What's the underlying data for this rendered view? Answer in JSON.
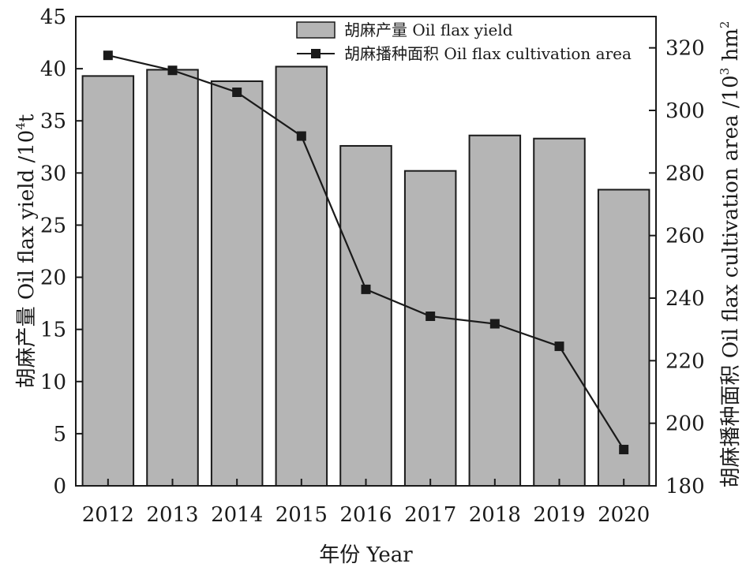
{
  "chart_data": {
    "type": "bar",
    "categories": [
      "2012",
      "2013",
      "2014",
      "2015",
      "2016",
      "2017",
      "2018",
      "2019",
      "2020"
    ],
    "series": [
      {
        "name": "胡麻产量 Oil flax yield",
        "type": "bar",
        "axis": "left",
        "values": [
          39.3,
          39.9,
          38.8,
          40.2,
          32.6,
          30.2,
          33.6,
          33.3,
          28.4
        ]
      },
      {
        "name": "胡麻播种面积 Oil flax cultivation area",
        "type": "line",
        "axis": "right",
        "values": [
          317.6,
          312.8,
          305.8,
          291.8,
          242.8,
          234.2,
          231.8,
          224.6,
          191.6
        ]
      }
    ],
    "xlabel": "年份 Year",
    "ylabel": "胡麻产量 Oil flax yield /10",
    "ylabel_sup": "4",
    "ylabel_unit": "t",
    "y2label": "胡麻播种面积 Oil flax cultivation area /10",
    "y2label_sup": "3",
    "y2label_unit": " hm",
    "y2label_sup2": "2",
    "ylim": [
      0,
      45
    ],
    "yticks": [
      0,
      5,
      10,
      15,
      20,
      25,
      30,
      35,
      40,
      45
    ],
    "y2lim": [
      180,
      330
    ],
    "y2ticks": [
      180,
      200,
      220,
      240,
      260,
      280,
      300,
      320
    ],
    "legend_position": "top-right",
    "grid": false,
    "colors": {
      "bar_fill": "#b5b5b5",
      "bar_stroke": "#1a1a1a",
      "line": "#1a1a1a",
      "marker": "#1a1a1a"
    }
  }
}
